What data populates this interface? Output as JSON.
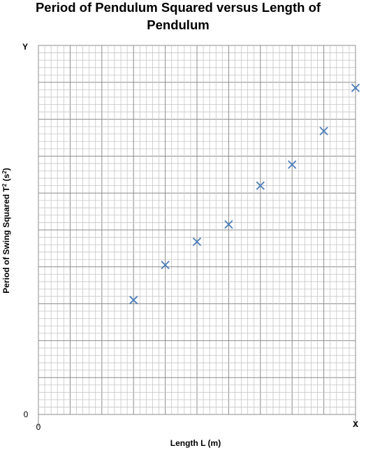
{
  "chart_data": {
    "type": "scatter",
    "title": "Period of Pendulum Squared versus Length of Pendulum",
    "title_lines": [
      "Period of Pendulum Squared versus Length of",
      "Pendulum"
    ],
    "xlabel": "Length L (m)",
    "ylabel_prefix": "Period of Swing Squared T",
    "ylabel_superscript": "2",
    "ylabel_suffix": " (s",
    "ylabel_superscript2": "2",
    "ylabel_close": ")",
    "x_axis_letter": "X",
    "y_axis_letter": "Y",
    "x_origin_label": "0",
    "y_origin_label": "0",
    "xlim": [
      0,
      10
    ],
    "ylim": [
      0,
      10
    ],
    "grid": true,
    "marker": "x",
    "marker_color": "#4a7ebb",
    "series": [
      {
        "x": [
          3,
          4,
          5,
          6,
          7,
          8,
          9,
          10
        ],
        "y": [
          3.1,
          4.05,
          4.68,
          5.15,
          6.2,
          6.77,
          7.68,
          8.85
        ]
      }
    ]
  }
}
